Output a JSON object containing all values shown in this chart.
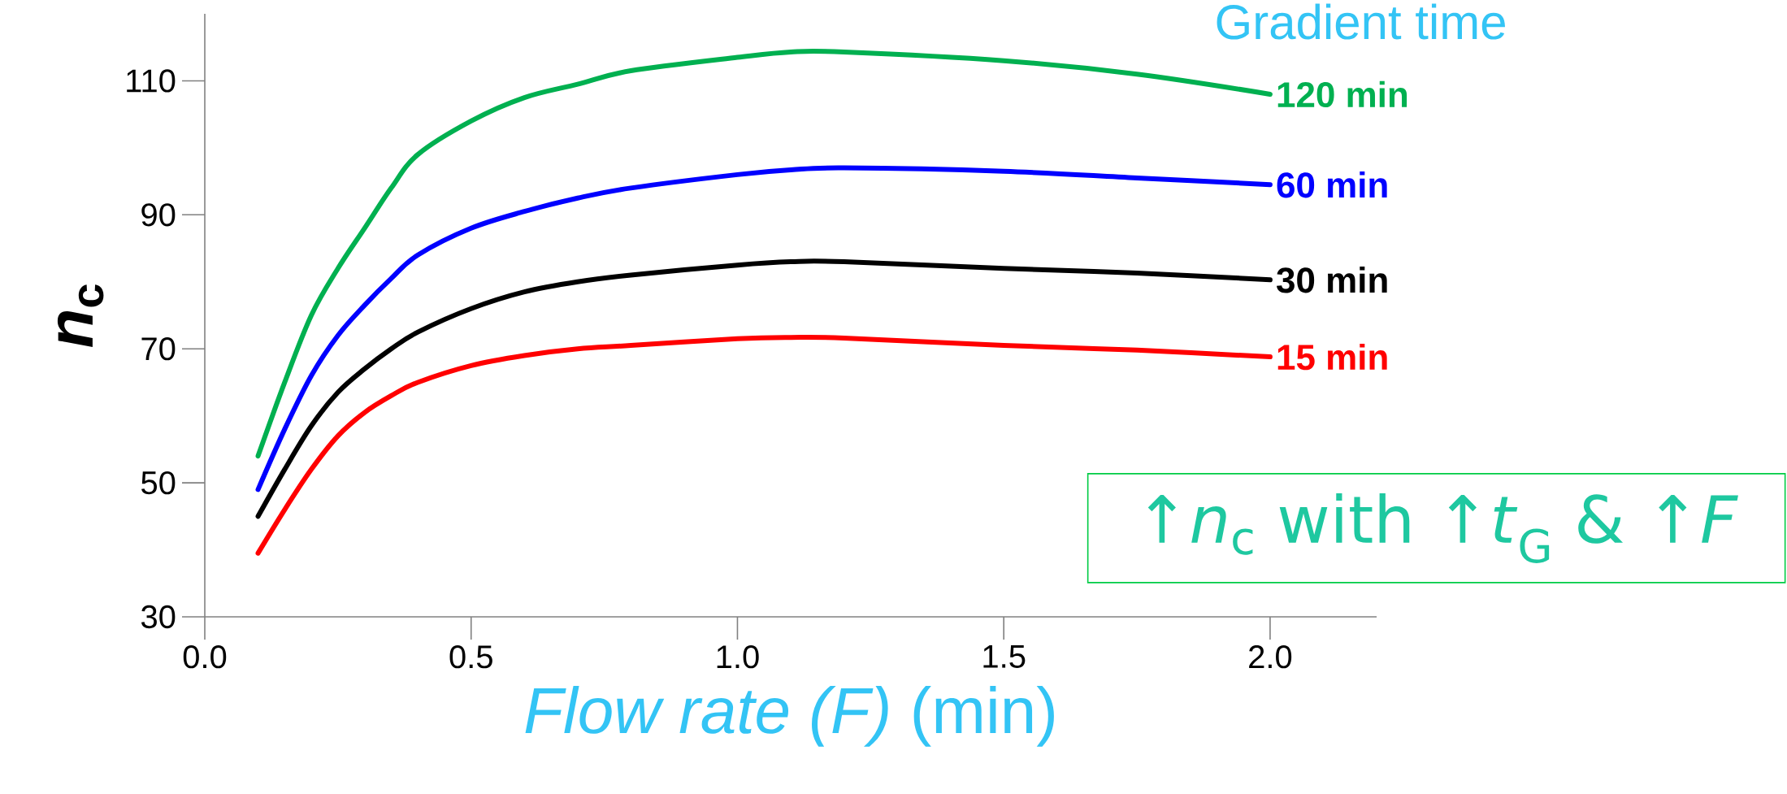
{
  "chart_data": {
    "type": "line",
    "legend_title": "Gradient time",
    "xlabel": "*Flow rate (F)* (min)",
    "ylabel": "*n*$_{c}$",
    "annotations": [
      "↑*n*$_{c}$ with ↑*t*$_{G}$ & ↑*F*"
    ],
    "xlim": [
      0,
      2.2
    ],
    "ylim": [
      30,
      120
    ],
    "xticks": [
      {
        "value": 0,
        "label": "0.0"
      },
      {
        "value": 0.5,
        "label": "0.5"
      },
      {
        "value": 1,
        "label": "1.0"
      },
      {
        "value": 1.5,
        "label": "1.5"
      },
      {
        "value": 2,
        "label": "2.0"
      }
    ],
    "yticks": [
      30,
      50,
      70,
      90,
      110
    ],
    "x": [
      0.1,
      0.15,
      0.2,
      0.25,
      0.3,
      0.35,
      0.4,
      0.5,
      0.6,
      0.7,
      0.8,
      1.0,
      1.1,
      1.2,
      1.5,
      1.75,
      2.0
    ],
    "series": [
      {
        "name": "120 min",
        "color": "#00b050",
        "values": [
          54,
          65,
          75,
          82,
          88,
          94,
          99,
          104,
          107.5,
          109.5,
          111.5,
          113.5,
          114.3,
          114.3,
          113,
          111,
          108
        ]
      },
      {
        "name": "60 min",
        "color": "#0000ff",
        "values": [
          49,
          58,
          66,
          72,
          76.5,
          80.5,
          84,
          88,
          90.5,
          92.5,
          94,
          96,
          96.7,
          97,
          96.5,
          95.5,
          94.5
        ]
      },
      {
        "name": "30 min",
        "color": "#000000",
        "values": [
          45,
          52,
          58.5,
          63.5,
          67,
          70,
          72.5,
          76,
          78.5,
          80,
          81,
          82.5,
          83,
          83,
          82,
          81.3,
          80.3
        ]
      },
      {
        "name": "15 min",
        "color": "#ff0000",
        "values": [
          39.5,
          46,
          52,
          57,
          60.5,
          63,
          65,
          67.5,
          69,
          70,
          70.5,
          71.5,
          71.7,
          71.6,
          70.5,
          69.8,
          68.8
        ]
      }
    ],
    "line_style": "solid"
  }
}
